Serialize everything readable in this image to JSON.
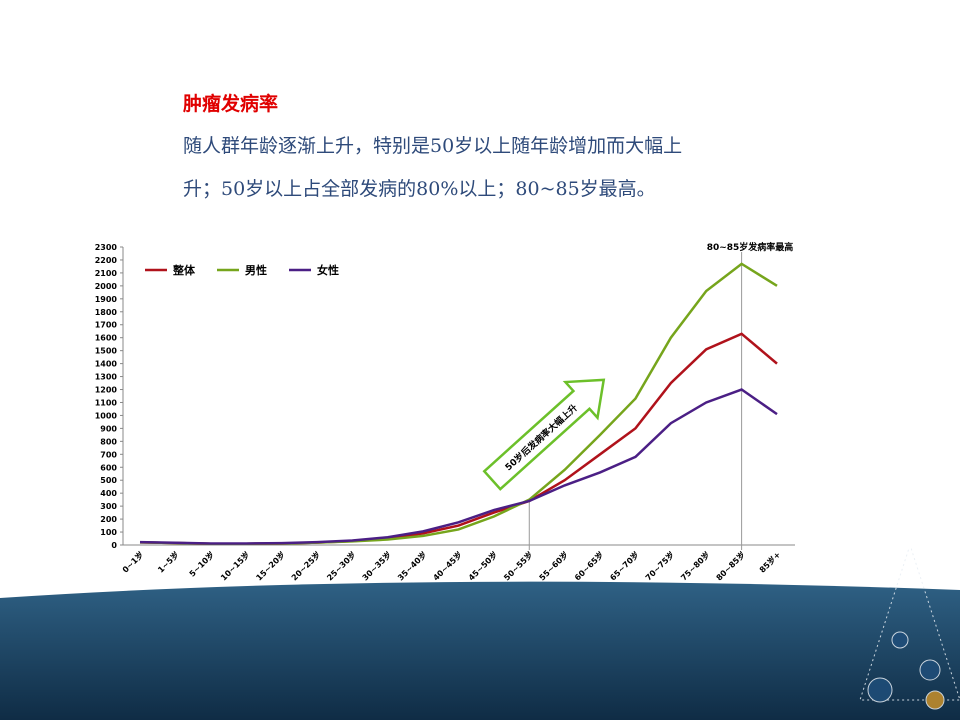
{
  "slide": {
    "title": "肿瘤发病率",
    "body": [
      "随人群年龄逐渐上升，特别是50岁以上随年龄增加而大幅上",
      "升；50岁以上占全部发病的80%以上；80~85岁最高。"
    ]
  },
  "chart_data": {
    "type": "line",
    "categories": [
      "0~1岁",
      "1~5岁",
      "5~10岁",
      "10~15岁",
      "15~20岁",
      "20~25岁",
      "25~30岁",
      "30~35岁",
      "35~40岁",
      "40~45岁",
      "45~50岁",
      "50~55岁",
      "55~60岁",
      "60~65岁",
      "65~70岁",
      "70~75岁",
      "75~80岁",
      "80~85岁",
      "85岁+"
    ],
    "series": [
      {
        "name": "整体",
        "color": "#b0121b",
        "values": [
          20,
          15,
          10,
          10,
          12,
          18,
          30,
          50,
          90,
          150,
          250,
          340,
          500,
          700,
          900,
          1250,
          1510,
          1630,
          1400
        ]
      },
      {
        "name": "男性",
        "color": "#76a51c",
        "values": [
          20,
          15,
          10,
          10,
          12,
          18,
          28,
          42,
          70,
          120,
          220,
          350,
          580,
          850,
          1130,
          1600,
          1960,
          2170,
          2000
        ]
      },
      {
        "name": "女性",
        "color": "#4b1f85",
        "values": [
          22,
          17,
          12,
          12,
          14,
          22,
          35,
          60,
          105,
          175,
          270,
          340,
          460,
          560,
          680,
          940,
          1100,
          1200,
          1010
        ]
      }
    ],
    "ylim": [
      0,
      2300
    ],
    "yticks": [
      0,
      100,
      200,
      300,
      400,
      500,
      600,
      700,
      800,
      900,
      1000,
      1100,
      1200,
      1300,
      1400,
      1500,
      1600,
      1700,
      1800,
      1900,
      2000,
      2100,
      2200,
      2300
    ],
    "annotations": [
      "80~85岁发病率最高",
      "50岁后发病率大幅上升"
    ]
  }
}
